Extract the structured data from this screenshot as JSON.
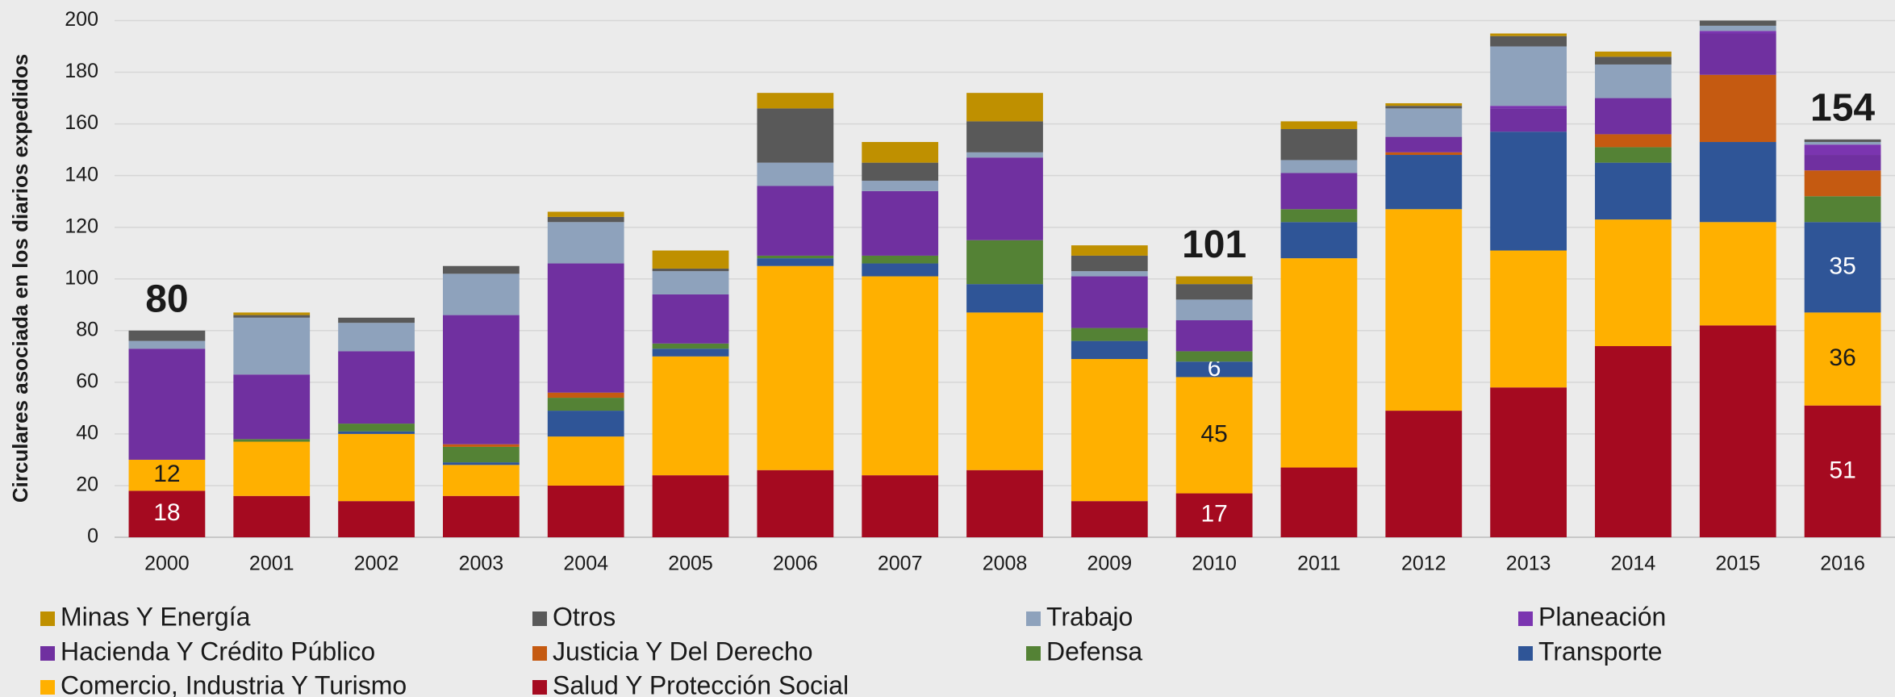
{
  "chart_data": {
    "type": "stacked_bar",
    "y_label": "Circulares asociada en los diarios expedidos",
    "categories": [
      "2000",
      "2001",
      "2002",
      "2003",
      "2004",
      "2005",
      "2006",
      "2007",
      "2008",
      "2009",
      "2010",
      "2011",
      "2012",
      "2013",
      "2014",
      "2015",
      "2016"
    ],
    "ylim": [
      0,
      200
    ],
    "yticks": [
      0,
      20,
      40,
      60,
      80,
      100,
      120,
      140,
      160,
      180,
      200
    ],
    "grid": true,
    "series": [
      {
        "name": "Salud Y Protección Social",
        "color": "#a50a20",
        "values": [
          18,
          16,
          14,
          16,
          20,
          24,
          26,
          24,
          26,
          14,
          17,
          27,
          49,
          58,
          74,
          82,
          51
        ],
        "labels_at": [
          "2000",
          "2010",
          "2016"
        ]
      },
      {
        "name": "Comercio, Industria Y Turismo",
        "color": "#ffb000",
        "values": [
          12,
          21,
          26,
          12,
          19,
          46,
          79,
          77,
          61,
          55,
          45,
          81,
          78,
          53,
          49,
          40,
          36
        ],
        "labels_at": [
          "2000",
          "2010",
          "2016"
        ]
      },
      {
        "name": "Transporte",
        "color": "#2f5597",
        "values": [
          0,
          0,
          1,
          1,
          10,
          3,
          3,
          5,
          11,
          7,
          6,
          14,
          21,
          46,
          22,
          31,
          35
        ],
        "labels_at": [
          "2010",
          "2016"
        ]
      },
      {
        "name": "Defensa",
        "color": "#548235",
        "values": [
          0,
          1,
          3,
          6,
          5,
          2,
          1,
          3,
          17,
          5,
          4,
          5,
          0,
          0,
          6,
          0,
          10
        ]
      },
      {
        "name": "Justicia Y Del Derecho",
        "color": "#c55a11",
        "values": [
          0,
          0,
          0,
          1,
          2,
          0,
          0,
          0,
          0,
          0,
          0,
          0,
          1,
          0,
          5,
          26,
          10
        ]
      },
      {
        "name": "Hacienda Y Crédito Público",
        "color": "#7030a0",
        "values": [
          43,
          25,
          28,
          50,
          50,
          19,
          27,
          25,
          32,
          20,
          12,
          14,
          6,
          9,
          14,
          16,
          6
        ]
      },
      {
        "name": "Planeación",
        "color": "#7b35b0",
        "values": [
          0,
          0,
          0,
          0,
          0,
          0,
          0,
          0,
          0,
          0,
          0,
          0,
          0,
          1,
          0,
          1,
          4
        ]
      },
      {
        "name": "Trabajo",
        "color": "#8ea2bc",
        "values": [
          3,
          22,
          11,
          16,
          16,
          9,
          9,
          4,
          2,
          2,
          8,
          5,
          11,
          23,
          13,
          2,
          1
        ]
      },
      {
        "name": "Otros",
        "color": "#595959",
        "values": [
          4,
          1,
          2,
          3,
          2,
          1,
          21,
          7,
          12,
          6,
          6,
          12,
          1,
          4,
          3,
          2,
          1
        ]
      },
      {
        "name": "Minas Y Energía",
        "color": "#bf9000",
        "values": [
          0,
          1,
          0,
          0,
          2,
          7,
          6,
          8,
          11,
          4,
          3,
          3,
          1,
          1,
          2,
          0,
          0
        ]
      }
    ],
    "totals": [
      {
        "category": "2000",
        "value": 80
      },
      {
        "category": "2010",
        "value": 101
      },
      {
        "category": "2016",
        "value": 154
      }
    ]
  }
}
